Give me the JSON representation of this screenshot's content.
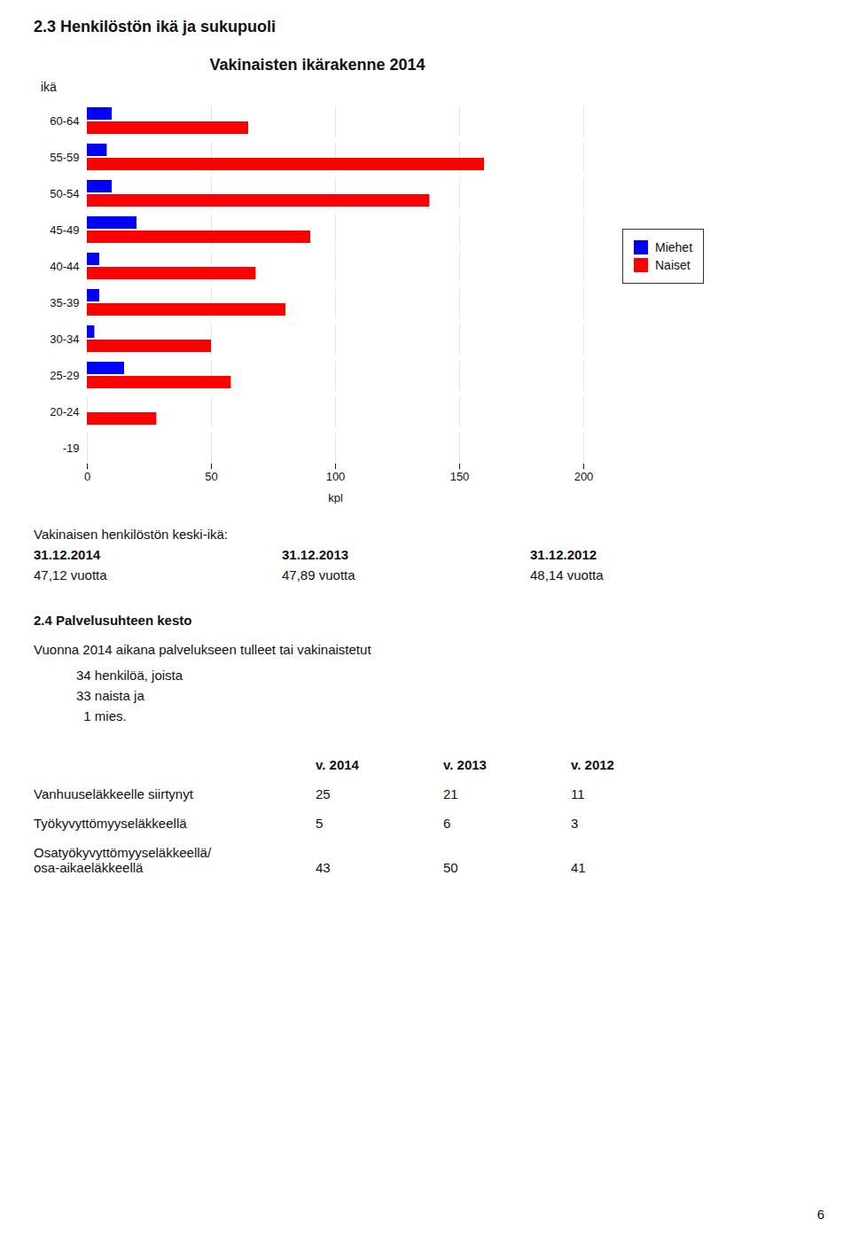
{
  "page_title": "2.3 Henkilöstön ikä ja sukupuoli",
  "chart_data": {
    "type": "bar",
    "orientation": "horizontal",
    "title": "Vakinaisten ikärakenne 2014",
    "xlabel": "kpl",
    "ylabel": "ikä",
    "categories": [
      "60-64",
      "55-59",
      "50-54",
      "45-49",
      "40-44",
      "35-39",
      "30-34",
      "25-29",
      "20-24",
      "-19"
    ],
    "series": [
      {
        "name": "Miehet",
        "color": "#0000FF",
        "values": [
          10,
          8,
          10,
          20,
          5,
          5,
          3,
          15,
          0,
          0
        ]
      },
      {
        "name": "Naiset",
        "color": "#FF0000",
        "values": [
          65,
          160,
          138,
          90,
          68,
          80,
          50,
          58,
          28,
          0
        ]
      }
    ],
    "xlim": [
      0,
      200
    ],
    "xticks": [
      0,
      50,
      100,
      150,
      200
    ],
    "grid": true,
    "legend": "right"
  },
  "text": {
    "section_heading": "Vakinaisen henkilöstön keski-ikä:",
    "dates": [
      "31.12.2014",
      "31.12.2013",
      "31.12.2012"
    ],
    "ages": [
      "47,12 vuotta",
      "47,89 vuotta",
      "48,14 vuotta"
    ],
    "section2_heading": "2.4 Palvelusuhteen kesto",
    "paragraph": "Vuonna 2014 aikana palvelukseen tulleet tai vakinaistetut",
    "bullets": [
      "34 henkilöä, joista",
      "33 naista ja",
      "  1 mies."
    ],
    "table_col_headers": [
      "v. 2014",
      "v. 2013",
      "v. 2012"
    ],
    "table_rows": [
      {
        "label": [
          "Vanhuuseläkkeelle siirtynyt"
        ],
        "values": [
          "25",
          "21",
          "11"
        ]
      },
      {
        "label": [
          "Työkyvyttömyyseläkkeellä"
        ],
        "values": [
          "5",
          "6",
          "3"
        ]
      },
      {
        "label": [
          "Osatyökyvyttömyyseläkkeellä/",
          "osa-aikaeläkkeellä"
        ],
        "values": [
          "43",
          "50",
          "41"
        ]
      }
    ],
    "page_number": "6"
  }
}
